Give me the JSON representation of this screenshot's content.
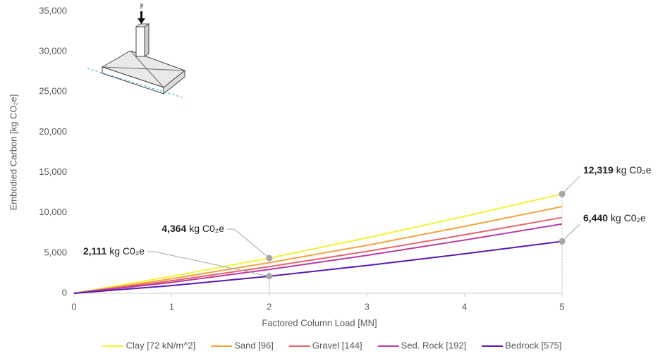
{
  "chart_data": {
    "type": "line",
    "xlabel": "Factored Column Load [MN]",
    "ylabel": "Embodied Carbon [kg CO₂e]",
    "inset_label": "P",
    "x": [
      0,
      1,
      2,
      3,
      4,
      5
    ],
    "series": [
      {
        "name": "Clay [72 kN/m^2]",
        "color": "#f2f23a",
        "values": [
          0,
          2100,
          4364,
          6880,
          9550,
          12319
        ]
      },
      {
        "name": "Sand [96]",
        "color": "#f4a23c",
        "values": [
          0,
          1800,
          3800,
          5950,
          8300,
          10750
        ]
      },
      {
        "name": "Gravel [144]",
        "color": "#e5646a",
        "values": [
          0,
          1550,
          3300,
          5200,
          7250,
          9400
        ]
      },
      {
        "name": "Sed. Rock [192]",
        "color": "#b83aa6",
        "values": [
          0,
          1350,
          2950,
          4700,
          6600,
          8600
        ]
      },
      {
        "name": "Bedrock [575]",
        "color": "#5a1ab0",
        "values": [
          0,
          950,
          2111,
          3450,
          4900,
          6440
        ]
      }
    ],
    "annotations": [
      {
        "x": 2,
        "y": 4364,
        "label": "4,364",
        "unit": "kg C0₂e"
      },
      {
        "x": 2,
        "y": 2111,
        "label": "2,111",
        "unit": "kg C0₂e"
      },
      {
        "x": 5,
        "y": 12319,
        "label": "12,319",
        "unit": "kg C0₂e"
      },
      {
        "x": 5,
        "y": 6440,
        "label": "6,440",
        "unit": "kg C0₂e"
      }
    ],
    "xlim": [
      0,
      5
    ],
    "xticks": [
      0,
      1,
      2,
      3,
      4,
      5
    ],
    "ylim": [
      0,
      35000
    ],
    "yticks": [
      0,
      {
        "value": 5000,
        "label": "5,000"
      },
      {
        "value": 10000,
        "label": "10,000"
      },
      {
        "value": 15000,
        "label": "15,000"
      },
      {
        "value": 20000,
        "label": "20,000"
      },
      {
        "value": 25000,
        "label": "25,000"
      },
      {
        "value": 30000,
        "label": "30,000"
      },
      {
        "value": 35000,
        "label": "35,000"
      }
    ],
    "grid": false,
    "legend": "bottom"
  }
}
